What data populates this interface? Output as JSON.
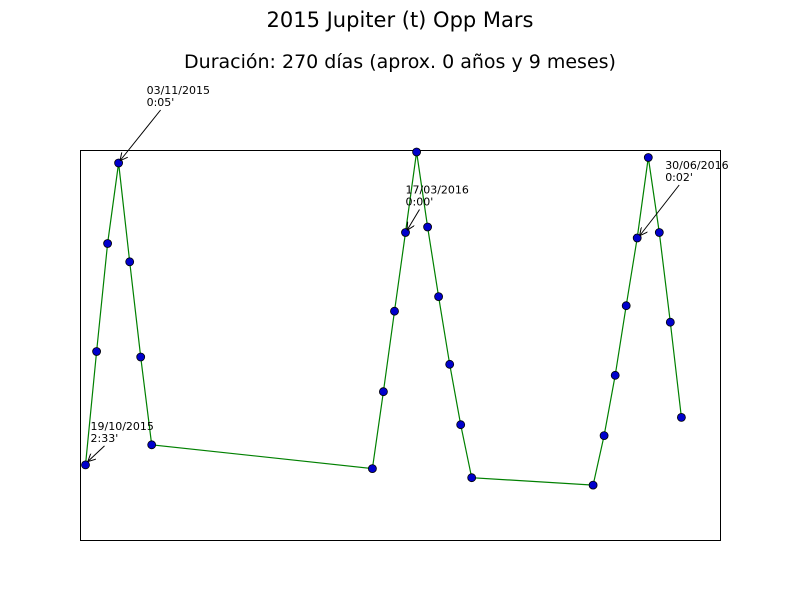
{
  "chart_data": {
    "type": "line",
    "title": "2015 Jupiter (t) Opp Mars",
    "subtitle": "Duración: 270 días (aprox. 0 años y 9 meses)",
    "xlabel": "",
    "ylabel": "",
    "x_ticks_visible": false,
    "y_ticks_visible": false,
    "grid": false,
    "line_color": "#008000",
    "marker_color": "#0000cc",
    "marker_edge_color": "#000000",
    "points": [
      {
        "day": 0,
        "y": 0.145
      },
      {
        "day": 1,
        "y": 0.455
      },
      {
        "day": 2,
        "y": 0.75
      },
      {
        "day": 3,
        "y": 0.97
      },
      {
        "day": 4,
        "y": 0.7
      },
      {
        "day": 5,
        "y": 0.44
      },
      {
        "day": 6,
        "y": 0.2
      },
      {
        "day": 26,
        "y": 0.135
      },
      {
        "day": 27,
        "y": 0.345
      },
      {
        "day": 28,
        "y": 0.565
      },
      {
        "day": 29,
        "y": 0.78
      },
      {
        "day": 30,
        "y": 1.0
      },
      {
        "day": 31,
        "y": 0.795
      },
      {
        "day": 32,
        "y": 0.605
      },
      {
        "day": 33,
        "y": 0.42
      },
      {
        "day": 34,
        "y": 0.255
      },
      {
        "day": 35,
        "y": 0.11
      },
      {
        "day": 46,
        "y": 0.09
      },
      {
        "day": 47,
        "y": 0.225
      },
      {
        "day": 48,
        "y": 0.39
      },
      {
        "day": 49,
        "y": 0.58
      },
      {
        "day": 50,
        "y": 0.765
      },
      {
        "day": 51,
        "y": 0.985
      },
      {
        "day": 52,
        "y": 0.78
      },
      {
        "day": 53,
        "y": 0.535
      },
      {
        "day": 54,
        "y": 0.275
      }
    ],
    "xlim": [
      -0.5,
      57.5
    ],
    "ylim": [
      0,
      1.0
    ],
    "annotations": [
      {
        "date": "19/10/2015",
        "time": "2:33'",
        "point_index": 0
      },
      {
        "date": "03/11/2015",
        "time": "0:05'",
        "point_index": 3
      },
      {
        "date": "17/03/2016",
        "time": "0:00'",
        "point_index": 10
      },
      {
        "date": "30/06/2016",
        "time": "0:02'",
        "point_index": 21
      }
    ]
  }
}
